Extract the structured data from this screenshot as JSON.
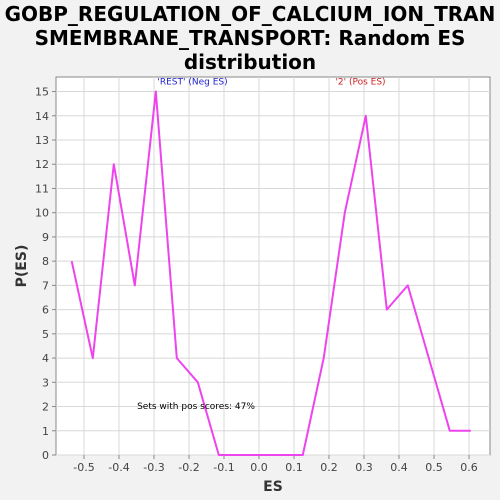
{
  "chart_data": {
    "type": "line",
    "title_lines": [
      "GOBP_REGULATION_OF_CALCIUM_ION_TRAN",
      "SMEMBRANE_TRANSPORT: Random ES",
      "distribution"
    ],
    "xlabel": "ES",
    "ylabel": "P(ES)",
    "xlim": [
      -0.58,
      0.66
    ],
    "ylim": [
      0,
      15.6
    ],
    "x_ticks": [
      -0.5,
      -0.4,
      -0.3,
      -0.2,
      -0.1,
      0.0,
      0.1,
      0.2,
      0.3,
      0.4,
      0.5,
      0.6
    ],
    "x_tick_labels": [
      "-0.5",
      "-0.4",
      "-0.3",
      "-0.2",
      "-0.1",
      "0.0",
      "0.1",
      "0.2",
      "0.3",
      "0.4",
      "0.5",
      "0.6"
    ],
    "y_ticks": [
      0,
      1,
      2,
      3,
      4,
      5,
      6,
      7,
      8,
      9,
      10,
      11,
      12,
      13,
      14,
      15
    ],
    "y_tick_labels": [
      "0",
      "1",
      "2",
      "3",
      "4",
      "5",
      "6",
      "7",
      "8",
      "9",
      "10",
      "11",
      "12",
      "13",
      "14",
      "15"
    ],
    "grid": true,
    "series": [
      {
        "color": "#ee44ee",
        "x": [
          -0.535,
          -0.475,
          -0.415,
          -0.355,
          -0.295,
          -0.235,
          -0.175,
          -0.115,
          -0.055,
          0.005,
          0.065,
          0.125,
          0.185,
          0.245,
          0.305,
          0.365,
          0.425,
          0.485,
          0.545,
          0.605
        ],
        "y": [
          8,
          4,
          12,
          7,
          15,
          4,
          3,
          0,
          0,
          0,
          0,
          0,
          4,
          10,
          14,
          6,
          7,
          4,
          1,
          1
        ]
      }
    ],
    "annotations": [
      {
        "text": "'REST' (Neg ES)",
        "x": -0.19,
        "y": 15.3,
        "color": "#2222cc"
      },
      {
        "text": "'2' (Pos ES)",
        "x": 0.29,
        "y": 15.3,
        "color": "#cc2222"
      },
      {
        "text": "Sets with pos scores: 47%",
        "x": -0.18,
        "y": 1.9,
        "color": "#000000"
      }
    ]
  }
}
